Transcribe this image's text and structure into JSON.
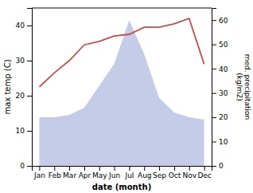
{
  "chart_data": {
    "type": "line",
    "categories": [
      "Jan",
      "Feb",
      "Mar",
      "Apr",
      "May",
      "Jun",
      "Jul",
      "Aug",
      "Sep",
      "Oct",
      "Nov",
      "Dec"
    ],
    "xlabel": "date (month)",
    "ylabel": "max temp (C)",
    "y2label": "med. precipitation\n(kg/m2)",
    "series": [
      {
        "type": "area",
        "axis": "y2",
        "color": "#c5cce8",
        "values": [
          20.0,
          20.0,
          21.0,
          24.0,
          33.0,
          42.0,
          60.0,
          46.0,
          28.0,
          22.0,
          20.0,
          19.0
        ]
      },
      {
        "type": "line",
        "color": "#c0504d",
        "values": [
          22.5,
          26.5,
          30.0,
          34.5,
          35.5,
          37.0,
          37.5,
          39.5,
          39.5,
          40.5,
          42.0,
          29.0
        ]
      }
    ],
    "ylim": [
      0,
      45
    ],
    "yticks": [
      0,
      10,
      20,
      30,
      40
    ],
    "y2lim": [
      0,
      65
    ],
    "y2ticks": [
      0,
      10,
      20,
      30,
      40,
      50,
      60
    ]
  }
}
